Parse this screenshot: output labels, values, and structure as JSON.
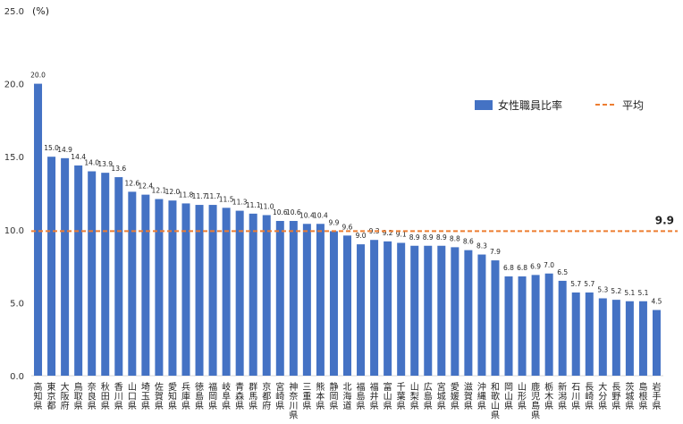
{
  "chart_data": {
    "type": "bar",
    "unit_label": "(%)",
    "ylim": [
      0,
      25
    ],
    "yticks": [
      "0.0",
      "5.0",
      "10.0",
      "15.0",
      "20.0",
      "25.0"
    ],
    "categories": [
      "高知県",
      "東京都",
      "大阪府",
      "鳥取県",
      "奈良県",
      "秋田県",
      "香川県",
      "山口県",
      "埼玉県",
      "佐賀県",
      "愛知県",
      "兵庫県",
      "徳島県",
      "福岡県",
      "岐阜県",
      "青森県",
      "群馬県",
      "京都府",
      "宮崎県",
      "神奈川県",
      "三重県",
      "熊本県",
      "静岡県",
      "北海道",
      "福島県",
      "福井県",
      "富山県",
      "千葉県",
      "山梨県",
      "広島県",
      "宮城県",
      "愛媛県",
      "滋賀県",
      "沖縄県",
      "和歌山県",
      "岡山県",
      "山形県",
      "鹿児島県",
      "栃木県",
      "新潟県",
      "石川県",
      "長崎県",
      "大分県",
      "長野県",
      "茨城県",
      "島根県",
      "岩手県"
    ],
    "series": [
      {
        "name": "女性職員比率",
        "color": "#4472C4",
        "values": [
          20.0,
          15.0,
          14.9,
          14.4,
          14.0,
          13.9,
          13.6,
          12.6,
          12.4,
          12.1,
          12.0,
          11.8,
          11.7,
          11.7,
          11.5,
          11.3,
          11.1,
          11.0,
          10.6,
          10.6,
          10.4,
          10.4,
          9.9,
          9.6,
          9.0,
          9.3,
          9.2,
          9.1,
          8.9,
          8.9,
          8.9,
          8.8,
          8.6,
          8.3,
          7.9,
          6.8,
          6.8,
          6.9,
          7.0,
          6.5,
          5.7,
          5.7,
          5.3,
          5.2,
          5.1,
          5.1,
          4.5
        ],
        "labels": [
          "20.0",
          "15.0",
          "14.9",
          "14.4",
          "14.0",
          "13.9",
          "13.6",
          "12.6",
          "12.4",
          "12.1",
          "12.0",
          "11.8",
          "11.7",
          "11.7",
          "11.5",
          "11.3",
          "11.1",
          "11.0",
          "10.6",
          "10.6",
          "10.4",
          "10.4",
          "9.9",
          "9.6",
          "9.0",
          "9.3",
          "9.2",
          "9.1",
          "8.9",
          "8.9",
          "8.9",
          "8.8",
          "8.6",
          "8.3",
          "7.9",
          "6.8",
          "6.8",
          "6.9",
          "7.0",
          "6.5",
          "5.7",
          "5.7",
          "5.3",
          "5.2",
          "5.1",
          "5.1",
          "4.5"
        ]
      }
    ],
    "average": {
      "name": "平均",
      "value": 9.9,
      "label": "9.9",
      "color": "#ED7D31"
    },
    "legend_placement": "top-right",
    "grid": false
  }
}
